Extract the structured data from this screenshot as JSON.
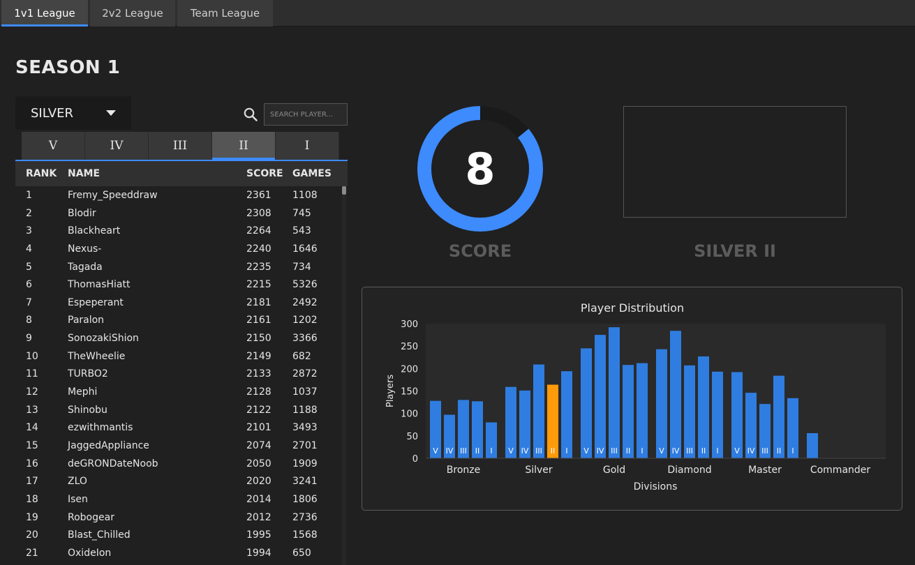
{
  "tabs": [
    {
      "label": "1v1 League",
      "active": true
    },
    {
      "label": "2v2 League",
      "active": false
    },
    {
      "label": "Team League",
      "active": false
    }
  ],
  "season_title": "SEASON 1",
  "league_select": {
    "value": "SILVER"
  },
  "search": {
    "placeholder": "SEARCH PLAYER..."
  },
  "divisions": [
    {
      "label": "V",
      "active": false
    },
    {
      "label": "IV",
      "active": false
    },
    {
      "label": "III",
      "active": false
    },
    {
      "label": "II",
      "active": true
    },
    {
      "label": "I",
      "active": false
    }
  ],
  "table": {
    "headers": {
      "rank": "RANK",
      "name": "NAME",
      "score": "SCORE",
      "games": "GAMES"
    },
    "rows": [
      {
        "rank": "1",
        "name": "Fremy_Speeddraw",
        "score": "2361",
        "games": "1108"
      },
      {
        "rank": "2",
        "name": "Blodir",
        "score": "2308",
        "games": "745"
      },
      {
        "rank": "3",
        "name": "Blackheart",
        "score": "2264",
        "games": "543"
      },
      {
        "rank": "4",
        "name": "Nexus-",
        "score": "2240",
        "games": "1646"
      },
      {
        "rank": "5",
        "name": "Tagada",
        "score": "2235",
        "games": "734"
      },
      {
        "rank": "6",
        "name": "ThomasHiatt",
        "score": "2215",
        "games": "5326"
      },
      {
        "rank": "7",
        "name": "Espeperant",
        "score": "2181",
        "games": "2492"
      },
      {
        "rank": "8",
        "name": "Paralon",
        "score": "2161",
        "games": "1202"
      },
      {
        "rank": "9",
        "name": "SonozakiShion",
        "score": "2150",
        "games": "3366"
      },
      {
        "rank": "10",
        "name": "TheWheelie",
        "score": "2149",
        "games": "682"
      },
      {
        "rank": "11",
        "name": "TURBO2",
        "score": "2133",
        "games": "2872"
      },
      {
        "rank": "12",
        "name": "Mephi",
        "score": "2128",
        "games": "1037"
      },
      {
        "rank": "13",
        "name": "Shinobu",
        "score": "2122",
        "games": "1188"
      },
      {
        "rank": "14",
        "name": "ezwithmantis",
        "score": "2101",
        "games": "3493"
      },
      {
        "rank": "15",
        "name": "JaggedAppliance",
        "score": "2074",
        "games": "2701"
      },
      {
        "rank": "16",
        "name": "deGRONDateNoob",
        "score": "2050",
        "games": "1909"
      },
      {
        "rank": "17",
        "name": "ZLO",
        "score": "2020",
        "games": "3241"
      },
      {
        "rank": "18",
        "name": "Isen",
        "score": "2014",
        "games": "1806"
      },
      {
        "rank": "19",
        "name": "Robogear",
        "score": "2012",
        "games": "2736"
      },
      {
        "rank": "20",
        "name": "Blast_Chilled",
        "score": "1995",
        "games": "1568"
      },
      {
        "rank": "21",
        "name": "OxideIon",
        "score": "1994",
        "games": "650"
      }
    ]
  },
  "score": {
    "value": "8",
    "label": "SCORE",
    "ring_fraction": 0.86
  },
  "rank_display": {
    "label": "SILVER II"
  },
  "colors": {
    "accent": "#3d8bfd",
    "bar": "#2f7de1",
    "highlight": "#ff9a0a"
  },
  "icons": {
    "search": "search-icon",
    "dropdown": "chevron-down-icon"
  },
  "chart_data": {
    "type": "bar",
    "title": "Player Distribution",
    "xlabel": "Divisions",
    "ylabel": "Players",
    "ylim": [
      0,
      300
    ],
    "yticks": [
      0,
      50,
      100,
      150,
      200,
      250,
      300
    ],
    "groups": [
      {
        "name": "Bronze",
        "bars": [
          {
            "label": "V",
            "value": 128
          },
          {
            "label": "IV",
            "value": 97
          },
          {
            "label": "III",
            "value": 130
          },
          {
            "label": "II",
            "value": 127
          },
          {
            "label": "I",
            "value": 80
          }
        ]
      },
      {
        "name": "Silver",
        "bars": [
          {
            "label": "V",
            "value": 159
          },
          {
            "label": "IV",
            "value": 151
          },
          {
            "label": "III",
            "value": 209
          },
          {
            "label": "II",
            "value": 164,
            "highlight": true
          },
          {
            "label": "I",
            "value": 194
          }
        ]
      },
      {
        "name": "Gold",
        "bars": [
          {
            "label": "V",
            "value": 245
          },
          {
            "label": "IV",
            "value": 275
          },
          {
            "label": "III",
            "value": 292
          },
          {
            "label": "II",
            "value": 208
          },
          {
            "label": "I",
            "value": 212
          }
        ]
      },
      {
        "name": "Diamond",
        "bars": [
          {
            "label": "V",
            "value": 243
          },
          {
            "label": "IV",
            "value": 284
          },
          {
            "label": "III",
            "value": 207
          },
          {
            "label": "II",
            "value": 227
          },
          {
            "label": "I",
            "value": 193
          }
        ]
      },
      {
        "name": "Master",
        "bars": [
          {
            "label": "V",
            "value": 192
          },
          {
            "label": "IV",
            "value": 146
          },
          {
            "label": "III",
            "value": 121
          },
          {
            "label": "II",
            "value": 184
          },
          {
            "label": "I",
            "value": 134
          }
        ]
      },
      {
        "name": "Commander",
        "bars": [
          {
            "label": "",
            "value": 56
          }
        ]
      }
    ]
  }
}
